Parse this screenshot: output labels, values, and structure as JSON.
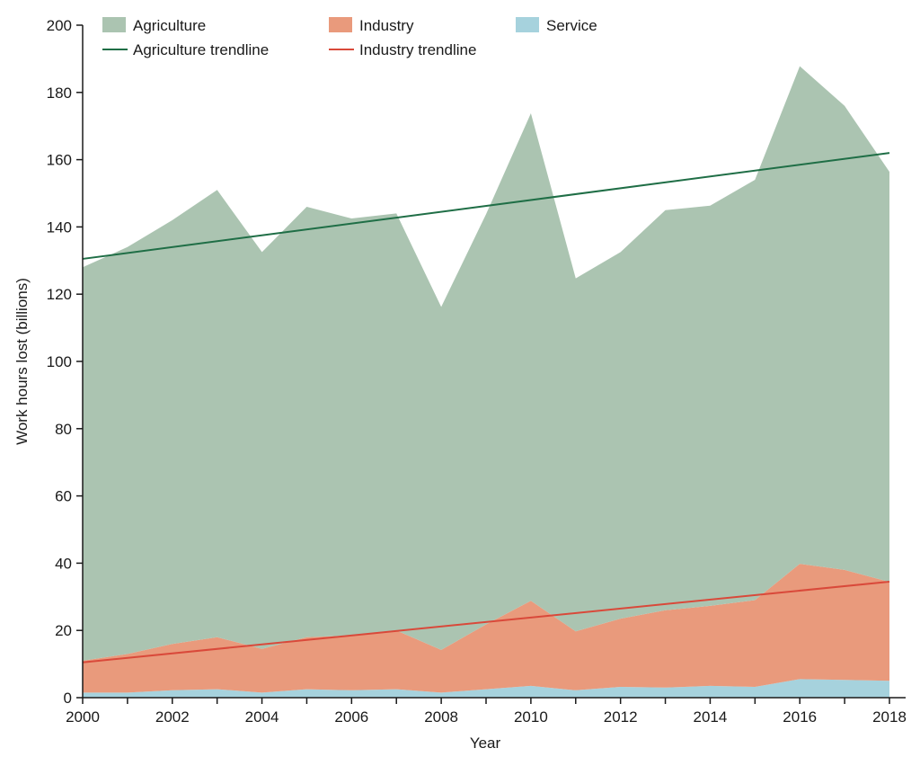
{
  "chart_data": {
    "type": "area",
    "stacked": true,
    "xlabel": "Year",
    "ylabel": "Work hours lost (billions)",
    "xlim": [
      2000,
      2018
    ],
    "ylim": [
      0,
      200
    ],
    "x_ticks": [
      2000,
      2002,
      2004,
      2006,
      2008,
      2010,
      2012,
      2014,
      2016,
      2018
    ],
    "y_ticks": [
      0,
      20,
      40,
      60,
      80,
      100,
      120,
      140,
      160,
      180,
      200
    ],
    "x": [
      2000,
      2001,
      2002,
      2003,
      2004,
      2005,
      2006,
      2007,
      2008,
      2009,
      2010,
      2011,
      2012,
      2013,
      2014,
      2015,
      2016,
      2017,
      2018
    ],
    "series": [
      {
        "name": "Service",
        "color": "#a6d2dd",
        "values": [
          1.5,
          1.5,
          2.2,
          2.5,
          1.5,
          2.5,
          2.2,
          2.5,
          1.5,
          2.5,
          3.5,
          2.2,
          3.2,
          3.0,
          3.5,
          3.2,
          5.5,
          5.3,
          5.0
        ]
      },
      {
        "name": "Industry",
        "color": "#e99a7c",
        "values": [
          9.5,
          11.5,
          13.8,
          15.5,
          13.0,
          15.5,
          16.3,
          17.5,
          12.7,
          19.3,
          25.3,
          17.5,
          20.3,
          23.0,
          23.8,
          25.8,
          34.3,
          32.7,
          29.4
        ]
      },
      {
        "name": "Agriculture",
        "color": "#abc4b1",
        "values": [
          117,
          121,
          126,
          133,
          118,
          128,
          124,
          124,
          102,
          122,
          145,
          105,
          109,
          119,
          119,
          125,
          148,
          138,
          122
        ]
      }
    ],
    "trendlines": [
      {
        "name": "Agriculture trendline",
        "color": "#1f6e46",
        "from": [
          2000,
          130.5
        ],
        "to": [
          2018,
          162
        ]
      },
      {
        "name": "Industry trendline",
        "color": "#d9493a",
        "from": [
          2000,
          10.5
        ],
        "to": [
          2018,
          34.5
        ]
      }
    ],
    "legend_position": "top",
    "grid": false
  }
}
